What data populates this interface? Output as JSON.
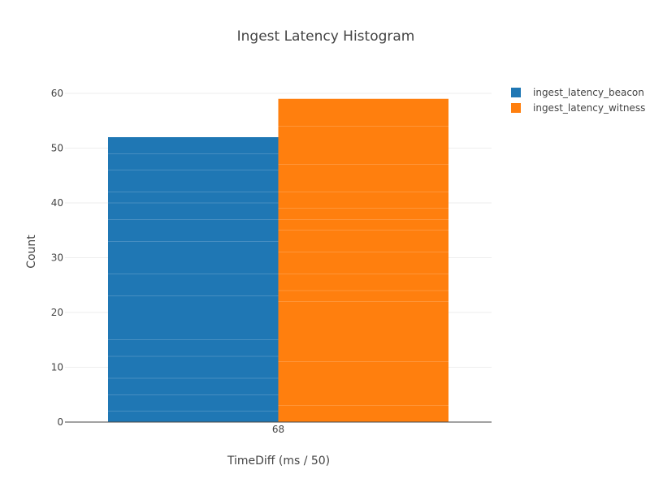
{
  "chart_data": {
    "type": "bar",
    "title": "Ingest Latency Histogram",
    "xlabel": "TimeDiff (ms / 50)",
    "ylabel": "Count",
    "categories": [
      "68"
    ],
    "ylim": [
      0,
      60
    ],
    "yticks": [
      0,
      10,
      20,
      30,
      40,
      50,
      60
    ],
    "grid": true,
    "legend_position": "top-right",
    "series": [
      {
        "name": "ingest_latency_beacon",
        "color": "#1f77b4",
        "values": [
          52
        ],
        "stack_boundaries": [
          2,
          5,
          8,
          12,
          15,
          23,
          27,
          33,
          37,
          40,
          42,
          46,
          49
        ]
      },
      {
        "name": "ingest_latency_witness",
        "color": "#ff7f0e",
        "values": [
          59
        ],
        "stack_boundaries": [
          3,
          11,
          22,
          24,
          27,
          31,
          35,
          37,
          39,
          42,
          47,
          54
        ]
      }
    ]
  }
}
